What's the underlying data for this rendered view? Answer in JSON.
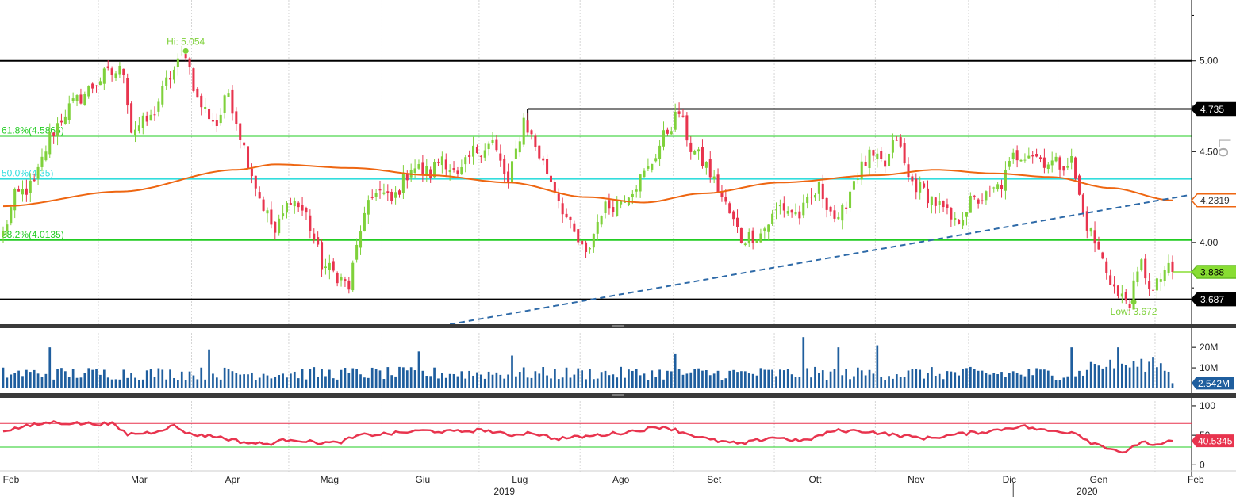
{
  "chart_data": [
    {
      "type": "candlestick",
      "title": "",
      "y_axis": {
        "ticks": [
          {
            "value": 5.0,
            "label": "5.00"
          },
          {
            "value": 4.5,
            "label": "4.50"
          },
          {
            "value": 4.0,
            "label": "4.00"
          }
        ],
        "ylim": [
          3.55,
          5.3
        ]
      },
      "scale_marker": "Lo",
      "hi_label": "Hi: 5.054",
      "hi_value": 5.054,
      "hi_index": 47,
      "low_label": "Low: 3.672",
      "low_value": 3.672,
      "low_index": 291,
      "price_tags": [
        {
          "label": "4.735",
          "value": 4.735,
          "style": "black"
        },
        {
          "label": "4.2319",
          "value": 4.2319,
          "style": "orange"
        },
        {
          "label": "3.838",
          "value": 3.838,
          "style": "green"
        },
        {
          "label": "3.687",
          "value": 3.687,
          "style": "black"
        }
      ],
      "horizontal_levels": [
        {
          "value": 5.0,
          "color": "#000000",
          "from_index": 0
        },
        {
          "value": 4.735,
          "color": "#000000",
          "from_index": 135
        },
        {
          "value": 3.687,
          "color": "#000000",
          "from_index": 0
        }
      ],
      "fibonacci_levels": [
        {
          "label": "61.8%(4.5865)",
          "value": 4.5865,
          "color": "#22cc22"
        },
        {
          "label": "50.0%(4.35)",
          "value": 4.35,
          "color": "#33dddd"
        },
        {
          "label": "38.2%(4.0135)",
          "value": 4.0135,
          "color": "#22cc22"
        }
      ],
      "trendline": {
        "start_index": 115,
        "start_value": 3.55,
        "end_index": 305,
        "end_value": 4.26,
        "color": "#2e6aa8",
        "style": "dashed"
      },
      "moving_average": {
        "color": "#ee6611",
        "knots": [
          {
            "i": 0,
            "v": 4.2
          },
          {
            "i": 30,
            "v": 4.28
          },
          {
            "i": 60,
            "v": 4.4
          },
          {
            "i": 70,
            "v": 4.43
          },
          {
            "i": 90,
            "v": 4.41
          },
          {
            "i": 110,
            "v": 4.37
          },
          {
            "i": 130,
            "v": 4.33
          },
          {
            "i": 150,
            "v": 4.25
          },
          {
            "i": 165,
            "v": 4.22
          },
          {
            "i": 180,
            "v": 4.27
          },
          {
            "i": 200,
            "v": 4.33
          },
          {
            "i": 225,
            "v": 4.37
          },
          {
            "i": 240,
            "v": 4.4
          },
          {
            "i": 255,
            "v": 4.38
          },
          {
            "i": 270,
            "v": 4.36
          },
          {
            "i": 285,
            "v": 4.3
          },
          {
            "i": 301,
            "v": 4.2319
          }
        ]
      },
      "price_path": [
        {
          "i": 0,
          "v": 4.05
        },
        {
          "i": 3,
          "v": 4.25
        },
        {
          "i": 8,
          "v": 4.32
        },
        {
          "i": 12,
          "v": 4.58
        },
        {
          "i": 16,
          "v": 4.72
        },
        {
          "i": 20,
          "v": 4.8
        },
        {
          "i": 26,
          "v": 4.92
        },
        {
          "i": 31,
          "v": 4.95
        },
        {
          "i": 33,
          "v": 4.62
        },
        {
          "i": 38,
          "v": 4.68
        },
        {
          "i": 42,
          "v": 4.88
        },
        {
          "i": 47,
          "v": 5.05
        },
        {
          "i": 50,
          "v": 4.78
        },
        {
          "i": 55,
          "v": 4.65
        },
        {
          "i": 58,
          "v": 4.83
        },
        {
          "i": 62,
          "v": 4.52
        },
        {
          "i": 66,
          "v": 4.25
        },
        {
          "i": 70,
          "v": 4.05
        },
        {
          "i": 74,
          "v": 4.25
        },
        {
          "i": 78,
          "v": 4.15
        },
        {
          "i": 82,
          "v": 3.88
        },
        {
          "i": 86,
          "v": 3.82
        },
        {
          "i": 89,
          "v": 3.75
        },
        {
          "i": 92,
          "v": 4.08
        },
        {
          "i": 96,
          "v": 4.3
        },
        {
          "i": 100,
          "v": 4.22
        },
        {
          "i": 105,
          "v": 4.42
        },
        {
          "i": 110,
          "v": 4.38
        },
        {
          "i": 113,
          "v": 4.48
        },
        {
          "i": 117,
          "v": 4.35
        },
        {
          "i": 121,
          "v": 4.5
        },
        {
          "i": 126,
          "v": 4.55
        },
        {
          "i": 130,
          "v": 4.32
        },
        {
          "i": 134,
          "v": 4.68
        },
        {
          "i": 138,
          "v": 4.48
        },
        {
          "i": 142,
          "v": 4.3
        },
        {
          "i": 146,
          "v": 4.08
        },
        {
          "i": 150,
          "v": 3.92
        },
        {
          "i": 154,
          "v": 4.18
        },
        {
          "i": 158,
          "v": 4.22
        },
        {
          "i": 162,
          "v": 4.3
        },
        {
          "i": 166,
          "v": 4.4
        },
        {
          "i": 170,
          "v": 4.58
        },
        {
          "i": 174,
          "v": 4.72
        },
        {
          "i": 177,
          "v": 4.52
        },
        {
          "i": 181,
          "v": 4.42
        },
        {
          "i": 185,
          "v": 4.25
        },
        {
          "i": 190,
          "v": 4.02
        },
        {
          "i": 195,
          "v": 4.05
        },
        {
          "i": 200,
          "v": 4.2
        },
        {
          "i": 205,
          "v": 4.15
        },
        {
          "i": 210,
          "v": 4.3
        },
        {
          "i": 215,
          "v": 4.1
        },
        {
          "i": 219,
          "v": 4.35
        },
        {
          "i": 223,
          "v": 4.47
        },
        {
          "i": 227,
          "v": 4.42
        },
        {
          "i": 230,
          "v": 4.58
        },
        {
          "i": 233,
          "v": 4.35
        },
        {
          "i": 237,
          "v": 4.28
        },
        {
          "i": 241,
          "v": 4.2
        },
        {
          "i": 245,
          "v": 4.1
        },
        {
          "i": 249,
          "v": 4.22
        },
        {
          "i": 253,
          "v": 4.25
        },
        {
          "i": 257,
          "v": 4.32
        },
        {
          "i": 260,
          "v": 4.47
        },
        {
          "i": 264,
          "v": 4.5
        },
        {
          "i": 268,
          "v": 4.45
        },
        {
          "i": 272,
          "v": 4.43
        },
        {
          "i": 275,
          "v": 4.45
        },
        {
          "i": 278,
          "v": 4.15
        },
        {
          "i": 281,
          "v": 4.0
        },
        {
          "i": 284,
          "v": 3.85
        },
        {
          "i": 287,
          "v": 3.7
        },
        {
          "i": 290,
          "v": 3.68
        },
        {
          "i": 293,
          "v": 3.88
        },
        {
          "i": 296,
          "v": 3.72
        },
        {
          "i": 299,
          "v": 3.85
        },
        {
          "i": 301,
          "v": 3.838
        }
      ],
      "candle_count": 302,
      "bull_color": "#7fd13b",
      "bear_color": "#e8344e"
    },
    {
      "type": "bar",
      "series": [
        {
          "name": "",
          "color": "#1f5e9e"
        }
      ],
      "y_axis": {
        "ticks": [
          {
            "value": 20,
            "label": "20M"
          },
          {
            "value": 10,
            "label": "10M"
          }
        ],
        "ylim": [
          0,
          27
        ]
      },
      "last_value": 2.542,
      "last_value_label": "2.542M",
      "baseline_M": 6,
      "amplitude_M": 4,
      "spikes": [
        {
          "i": 12,
          "v": 20
        },
        {
          "i": 53,
          "v": 19
        },
        {
          "i": 107,
          "v": 18
        },
        {
          "i": 131,
          "v": 16
        },
        {
          "i": 173,
          "v": 17
        },
        {
          "i": 206,
          "v": 25
        },
        {
          "i": 215,
          "v": 20
        },
        {
          "i": 225,
          "v": 21
        },
        {
          "i": 275,
          "v": 20
        },
        {
          "i": 287,
          "v": 20
        },
        {
          "i": 296,
          "v": 15
        }
      ]
    },
    {
      "type": "line",
      "series": [
        {
          "name": "",
          "color": "#e8344e"
        }
      ],
      "y_axis": {
        "ticks": [
          {
            "value": 100,
            "label": "100"
          },
          {
            "value": 50,
            "label": "50"
          },
          {
            "value": 0,
            "label": "0"
          }
        ],
        "ylim": [
          -5,
          108
        ]
      },
      "upper_band": {
        "value": 70,
        "color": "#e8344e"
      },
      "lower_band": {
        "value": 30,
        "color": "#22cc22"
      },
      "last_value": 40.5345,
      "last_value_label": "40.5345",
      "knots": [
        {
          "i": 0,
          "v": 58
        },
        {
          "i": 6,
          "v": 65
        },
        {
          "i": 12,
          "v": 72
        },
        {
          "i": 20,
          "v": 70
        },
        {
          "i": 28,
          "v": 69
        },
        {
          "i": 32,
          "v": 52
        },
        {
          "i": 38,
          "v": 55
        },
        {
          "i": 44,
          "v": 66
        },
        {
          "i": 48,
          "v": 52
        },
        {
          "i": 55,
          "v": 48
        },
        {
          "i": 62,
          "v": 38
        },
        {
          "i": 68,
          "v": 35
        },
        {
          "i": 74,
          "v": 44
        },
        {
          "i": 80,
          "v": 38
        },
        {
          "i": 86,
          "v": 37
        },
        {
          "i": 92,
          "v": 50
        },
        {
          "i": 100,
          "v": 53
        },
        {
          "i": 108,
          "v": 58
        },
        {
          "i": 116,
          "v": 56
        },
        {
          "i": 124,
          "v": 59
        },
        {
          "i": 130,
          "v": 50
        },
        {
          "i": 136,
          "v": 55
        },
        {
          "i": 142,
          "v": 44
        },
        {
          "i": 150,
          "v": 48
        },
        {
          "i": 160,
          "v": 55
        },
        {
          "i": 170,
          "v": 65
        },
        {
          "i": 175,
          "v": 55
        },
        {
          "i": 182,
          "v": 42
        },
        {
          "i": 190,
          "v": 35
        },
        {
          "i": 198,
          "v": 47
        },
        {
          "i": 206,
          "v": 40
        },
        {
          "i": 214,
          "v": 58
        },
        {
          "i": 222,
          "v": 57
        },
        {
          "i": 230,
          "v": 50
        },
        {
          "i": 238,
          "v": 45
        },
        {
          "i": 246,
          "v": 52
        },
        {
          "i": 254,
          "v": 57
        },
        {
          "i": 262,
          "v": 66
        },
        {
          "i": 268,
          "v": 58
        },
        {
          "i": 276,
          "v": 55
        },
        {
          "i": 280,
          "v": 38
        },
        {
          "i": 285,
          "v": 28
        },
        {
          "i": 289,
          "v": 20
        },
        {
          "i": 293,
          "v": 40
        },
        {
          "i": 297,
          "v": 32
        },
        {
          "i": 301,
          "v": 40.5345
        }
      ]
    }
  ],
  "x_axis": {
    "months": [
      {
        "label": "Feb",
        "index": 0
      },
      {
        "label": "Mar",
        "index": 25
      },
      {
        "label": "Apr",
        "index": 49
      },
      {
        "label": "Mag",
        "index": 74
      },
      {
        "label": "Giu",
        "index": 98
      },
      {
        "label": "Lug",
        "index": 123
      },
      {
        "label": "Ago",
        "index": 149
      },
      {
        "label": "Set",
        "index": 173
      },
      {
        "label": "Ott",
        "index": 199
      },
      {
        "label": "Nov",
        "index": 225
      },
      {
        "label": "Dic",
        "index": 249
      },
      {
        "label": "Gen",
        "index": 272
      },
      {
        "label": "Feb",
        "index": 297
      }
    ],
    "years": [
      {
        "label": "2019",
        "index": 129
      },
      {
        "label": "2020",
        "index": 279
      }
    ],
    "year_boundary_index": 260
  },
  "colors": {
    "axis": "#000000",
    "grid": "#d5d5d5",
    "separator": "#3a3a3a"
  }
}
